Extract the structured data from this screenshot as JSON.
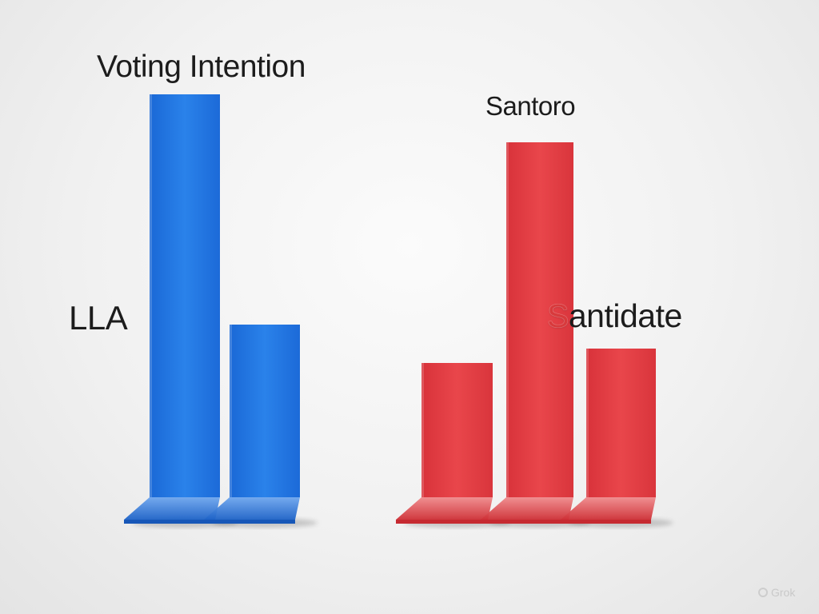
{
  "chart_data": {
    "type": "bar",
    "title": "Voting Intention",
    "xlabel": "",
    "ylabel": "",
    "grid": false,
    "legend": "none",
    "group_labels": [
      "LLA",
      "Santoro"
    ],
    "annotation": {
      "first_letter": "S",
      "rest": "antidate"
    },
    "series": [
      {
        "group": "LLA",
        "color": "#1f74e0",
        "values": [
          0.84,
          0.36
        ]
      },
      {
        "group": "Santoro",
        "color": "#e03a3f",
        "values": [
          0.28,
          0.74,
          0.31
        ]
      }
    ],
    "ylim": [
      0,
      1
    ]
  },
  "watermark": "Grok"
}
